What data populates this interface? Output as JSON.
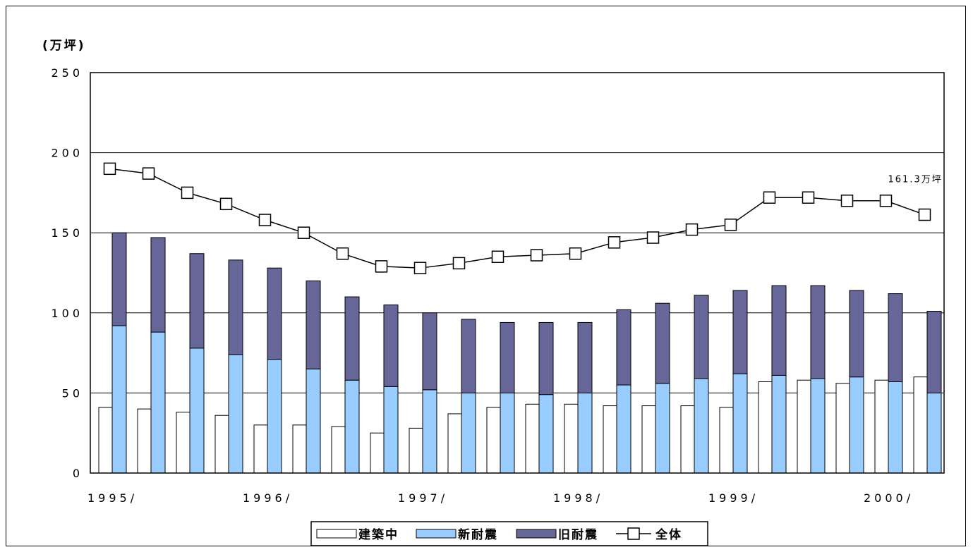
{
  "chart_data": {
    "type": "bar",
    "stacked_series": [
      "新耐震",
      "旧耐震"
    ],
    "unit_label": "(万坪)",
    "y_ticks": [
      "250",
      "200",
      "150",
      "100",
      "50",
      "0"
    ],
    "ylim": [
      0,
      250
    ],
    "grid": true,
    "x_labels": [
      {
        "text": "1995/",
        "at": 0
      },
      {
        "text": "1996/",
        "at": 4
      },
      {
        "text": "1997/",
        "at": 8
      },
      {
        "text": "1998/",
        "at": 12
      },
      {
        "text": "1999/",
        "at": 16
      },
      {
        "text": "2000/",
        "at": 20
      }
    ],
    "legend_position": "bottom",
    "series": [
      {
        "name": "建築中",
        "kind": "bar",
        "color": "#ffffff",
        "values": [
          41,
          40,
          38,
          36,
          30,
          30,
          29,
          25,
          28,
          37,
          41,
          43,
          43,
          42,
          42,
          42,
          41,
          57,
          58,
          56,
          58,
          60
        ]
      },
      {
        "name": "新耐震",
        "kind": "bar",
        "color": "#99ccff",
        "values": [
          92,
          88,
          78,
          74,
          71,
          65,
          58,
          54,
          52,
          50,
          50,
          49,
          50,
          55,
          56,
          59,
          62,
          61,
          59,
          60,
          57,
          50
        ]
      },
      {
        "name": "旧耐震",
        "kind": "bar",
        "color": "#666699",
        "values": [
          58,
          59,
          59,
          59,
          57,
          55,
          52,
          51,
          48,
          46,
          44,
          45,
          44,
          47,
          50,
          52,
          52,
          56,
          58,
          54,
          55,
          51
        ]
      },
      {
        "name": "全体",
        "kind": "line",
        "color": "#000000",
        "values": [
          190,
          187,
          175,
          168,
          158,
          150,
          137,
          129,
          128,
          131,
          135,
          136,
          137,
          144,
          147,
          152,
          155,
          172,
          172,
          170,
          170,
          161.3
        ]
      }
    ],
    "annotations": [
      {
        "text": "161.3万坪",
        "point_index": 21
      }
    ]
  }
}
